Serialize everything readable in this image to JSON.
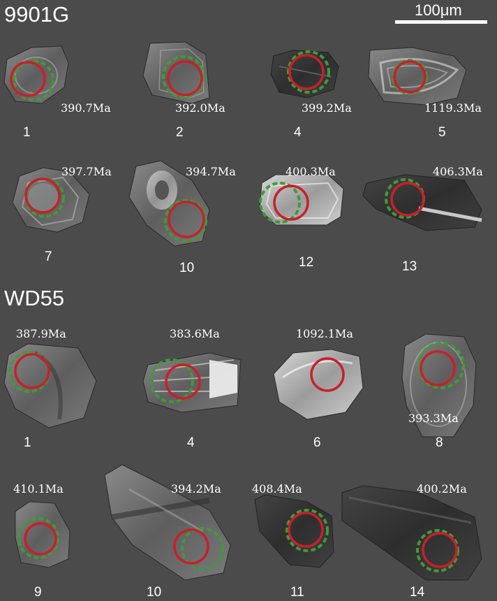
{
  "samples": [
    {
      "name": "9901G",
      "grains": [
        {
          "number": "1",
          "age": "390.7Ma"
        },
        {
          "number": "2",
          "age": "392.0Ma"
        },
        {
          "number": "4",
          "age": "399.2Ma"
        },
        {
          "number": "5",
          "age": "1119.3Ma"
        },
        {
          "number": "7",
          "age": "397.7Ma"
        },
        {
          "number": "10",
          "age": "394.7Ma"
        },
        {
          "number": "12",
          "age": "400.3Ma"
        },
        {
          "number": "13",
          "age": "406.3Ma"
        }
      ]
    },
    {
      "name": "WD55",
      "grains": [
        {
          "number": "1",
          "age": "387.9Ma"
        },
        {
          "number": "4",
          "age": "383.6Ma"
        },
        {
          "number": "6",
          "age": "1092.1Ma"
        },
        {
          "number": "8",
          "age": "393.3Ma"
        },
        {
          "number": "9",
          "age": "410.1Ma"
        },
        {
          "number": "10",
          "age": "394.2Ma"
        },
        {
          "number": "11",
          "age": "408.4Ma"
        },
        {
          "number": "14",
          "age": "400.2Ma"
        }
      ]
    }
  ],
  "scale_bar": {
    "label": "100μm"
  },
  "colors": {
    "background": "#4b4b4b",
    "spot_solid": "#c8202a",
    "spot_dashed": "#3f9a3a",
    "text": "#ffffff"
  }
}
